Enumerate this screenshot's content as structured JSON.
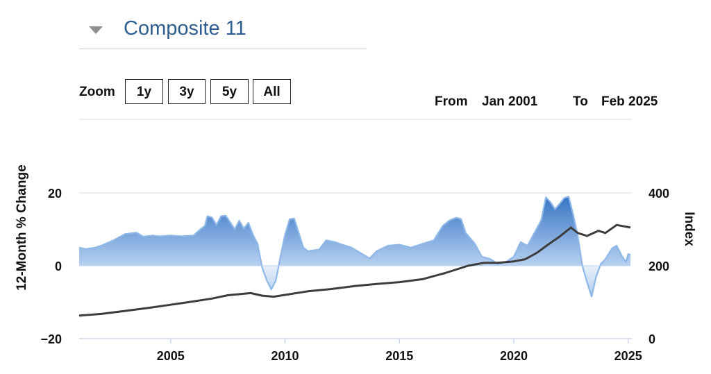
{
  "header": {
    "title": "Composite 11",
    "collapse_icon": "triangle-down-icon"
  },
  "zoom": {
    "label": "Zoom",
    "buttons": [
      "1y",
      "3y",
      "5y",
      "All"
    ]
  },
  "range": {
    "from_label": "From",
    "from_value": "Jan 2001",
    "to_label": "To",
    "to_value": "Feb 2025"
  },
  "colors": {
    "area_top": "#4d86cf",
    "area_bottom": "#dce9f8",
    "area_stroke": "#8db8e8",
    "index_line": "#3c3c3c",
    "grid": "#dcdcdc"
  },
  "chart_data": {
    "type": "area",
    "x_axis": {
      "range": [
        2001.0,
        2025.1
      ],
      "ticks": [
        2005,
        2010,
        2015,
        2020,
        2025
      ]
    },
    "y_left": {
      "label": "12-Month % Change",
      "range": [
        -20,
        20
      ],
      "ticks": [
        -20,
        0,
        20
      ]
    },
    "y_right": {
      "label": "Index",
      "range": [
        0,
        400
      ],
      "ticks": [
        0,
        200,
        400
      ]
    },
    "grid": true,
    "series": [
      {
        "axis": "left",
        "type": "area",
        "points": [
          [
            2001.0,
            5.0
          ],
          [
            2001.3,
            4.6
          ],
          [
            2001.7,
            5.0
          ],
          [
            2002.0,
            5.6
          ],
          [
            2002.5,
            7.0
          ],
          [
            2003.0,
            8.7
          ],
          [
            2003.5,
            9.1
          ],
          [
            2003.8,
            8.0
          ],
          [
            2004.2,
            8.3
          ],
          [
            2004.5,
            8.1
          ],
          [
            2005.0,
            8.3
          ],
          [
            2005.5,
            8.1
          ],
          [
            2006.0,
            8.3
          ],
          [
            2006.3,
            10.0
          ],
          [
            2006.5,
            11.0
          ],
          [
            2006.6,
            13.6
          ],
          [
            2006.8,
            13.3
          ],
          [
            2007.0,
            11.2
          ],
          [
            2007.2,
            13.6
          ],
          [
            2007.4,
            13.8
          ],
          [
            2007.6,
            12.0
          ],
          [
            2007.8,
            10.0
          ],
          [
            2008.0,
            12.4
          ],
          [
            2008.2,
            10.2
          ],
          [
            2008.4,
            11.8
          ],
          [
            2008.6,
            8.5
          ],
          [
            2008.8,
            6.0
          ],
          [
            2009.0,
            -0.5
          ],
          [
            2009.2,
            -4.0
          ],
          [
            2009.4,
            -6.5
          ],
          [
            2009.6,
            -4.0
          ],
          [
            2009.8,
            2.5
          ],
          [
            2010.0,
            8.5
          ],
          [
            2010.2,
            12.8
          ],
          [
            2010.4,
            13.0
          ],
          [
            2010.6,
            9.0
          ],
          [
            2010.8,
            5.0
          ],
          [
            2011.0,
            4.0
          ],
          [
            2011.5,
            4.5
          ],
          [
            2011.8,
            7.0
          ],
          [
            2012.2,
            6.5
          ],
          [
            2012.5,
            5.8
          ],
          [
            2012.9,
            5.0
          ],
          [
            2013.3,
            3.5
          ],
          [
            2013.7,
            2.0
          ],
          [
            2014.0,
            4.0
          ],
          [
            2014.5,
            5.5
          ],
          [
            2015.0,
            5.8
          ],
          [
            2015.5,
            5.0
          ],
          [
            2016.0,
            6.0
          ],
          [
            2016.5,
            7.0
          ],
          [
            2016.9,
            11.0
          ],
          [
            2017.2,
            12.5
          ],
          [
            2017.5,
            13.2
          ],
          [
            2017.7,
            12.8
          ],
          [
            2017.9,
            9.0
          ],
          [
            2018.3,
            6.0
          ],
          [
            2018.6,
            2.5
          ],
          [
            2019.0,
            1.8
          ],
          [
            2019.3,
            0.5
          ],
          [
            2019.7,
            1.2
          ],
          [
            2020.0,
            2.5
          ],
          [
            2020.3,
            6.5
          ],
          [
            2020.6,
            5.5
          ],
          [
            2020.9,
            9.0
          ],
          [
            2021.2,
            12.5
          ],
          [
            2021.4,
            18.8
          ],
          [
            2021.6,
            17.5
          ],
          [
            2021.8,
            15.5
          ],
          [
            2022.0,
            17.0
          ],
          [
            2022.2,
            18.6
          ],
          [
            2022.4,
            19.0
          ],
          [
            2022.6,
            14.0
          ],
          [
            2022.8,
            8.0
          ],
          [
            2023.0,
            0.0
          ],
          [
            2023.2,
            -4.5
          ],
          [
            2023.4,
            -8.5
          ],
          [
            2023.6,
            -3.0
          ],
          [
            2023.8,
            0.5
          ],
          [
            2024.0,
            1.8
          ],
          [
            2024.3,
            4.8
          ],
          [
            2024.5,
            5.5
          ],
          [
            2024.7,
            3.0
          ],
          [
            2024.9,
            1.0
          ],
          [
            2025.0,
            3.2
          ],
          [
            2025.1,
            3.0
          ]
        ]
      },
      {
        "axis": "right",
        "type": "line",
        "points": [
          [
            2001.0,
            63
          ],
          [
            2002.0,
            68
          ],
          [
            2003.0,
            76
          ],
          [
            2004.0,
            84
          ],
          [
            2005.0,
            93
          ],
          [
            2006.0,
            102
          ],
          [
            2006.8,
            110
          ],
          [
            2007.5,
            119
          ],
          [
            2008.5,
            125
          ],
          [
            2009.0,
            118
          ],
          [
            2009.5,
            115
          ],
          [
            2010.0,
            120
          ],
          [
            2011.0,
            130
          ],
          [
            2012.0,
            136
          ],
          [
            2013.0,
            144
          ],
          [
            2014.0,
            150
          ],
          [
            2015.0,
            155
          ],
          [
            2016.0,
            163
          ],
          [
            2017.0,
            180
          ],
          [
            2018.0,
            200
          ],
          [
            2018.7,
            208
          ],
          [
            2019.3,
            208
          ],
          [
            2020.0,
            212
          ],
          [
            2020.5,
            218
          ],
          [
            2021.0,
            235
          ],
          [
            2021.5,
            258
          ],
          [
            2022.0,
            280
          ],
          [
            2022.5,
            305
          ],
          [
            2022.8,
            290
          ],
          [
            2023.2,
            282
          ],
          [
            2023.7,
            296
          ],
          [
            2024.0,
            290
          ],
          [
            2024.5,
            312
          ],
          [
            2025.1,
            305
          ]
        ]
      }
    ]
  }
}
